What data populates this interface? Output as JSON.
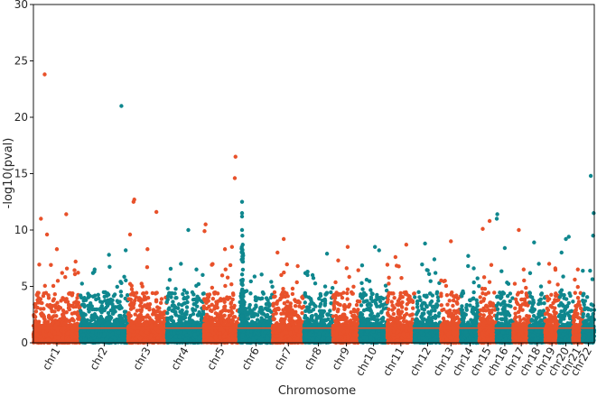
{
  "chart_data": {
    "type": "scatter",
    "subtype": "manhattan",
    "title": "",
    "xlabel": "Chromosome",
    "ylabel": "-log10(pval)",
    "ylim": [
      0,
      30
    ],
    "yticks": [
      0,
      5,
      10,
      15,
      20,
      25,
      30
    ],
    "grid": false,
    "threshold": 1.3,
    "colors": {
      "odd": "#e8512a",
      "even": "#0f878e",
      "threshold": "#e8512a"
    },
    "chromosomes": [
      {
        "label": "chr1",
        "start": 0.0,
        "end": 0.104,
        "peaks": [
          {
            "x": 0.24,
            "y": 23.8
          },
          {
            "x": 0.16,
            "y": 11.0
          },
          {
            "x": 0.7,
            "y": 11.4
          },
          {
            "x": 0.29,
            "y": 9.6
          },
          {
            "x": 0.5,
            "y": 8.3
          },
          {
            "x": 0.9,
            "y": 7.2
          }
        ]
      },
      {
        "label": "chr2",
        "start": 0.104,
        "end": 0.21,
        "peaks": [
          {
            "x": 0.86,
            "y": 21.0
          },
          {
            "x": 0.6,
            "y": 7.8
          },
          {
            "x": 0.95,
            "y": 8.2
          },
          {
            "x": 0.3,
            "y": 6.5
          }
        ]
      },
      {
        "label": "chr3",
        "start": 0.21,
        "end": 0.296,
        "peaks": [
          {
            "x": 0.16,
            "y": 12.7
          },
          {
            "x": 0.14,
            "y": 12.5
          },
          {
            "x": 0.73,
            "y": 11.6
          },
          {
            "x": 0.5,
            "y": 8.3
          },
          {
            "x": 0.05,
            "y": 9.6
          }
        ]
      },
      {
        "label": "chr4",
        "start": 0.296,
        "end": 0.378,
        "peaks": [
          {
            "x": 0.58,
            "y": 10.0
          },
          {
            "x": 0.38,
            "y": 7.0
          },
          {
            "x": 0.8,
            "y": 6.5
          }
        ]
      },
      {
        "label": "chr5",
        "start": 0.378,
        "end": 0.456,
        "peaks": [
          {
            "x": 0.9,
            "y": 16.5
          },
          {
            "x": 0.88,
            "y": 14.6
          },
          {
            "x": 0.05,
            "y": 10.5
          },
          {
            "x": 0.02,
            "y": 9.9
          },
          {
            "x": 0.8,
            "y": 8.5
          },
          {
            "x": 0.6,
            "y": 8.3
          }
        ]
      },
      {
        "label": "chr6",
        "start": 0.456,
        "end": 0.531,
        "peaks": [
          {
            "x": 0.09,
            "y": 12.5
          },
          {
            "x": 0.09,
            "y": 11.5
          },
          {
            "x": 0.09,
            "y": 11.2
          },
          {
            "x": 0.09,
            "y": 10.0
          },
          {
            "x": 0.1,
            "y": 9.5
          },
          {
            "x": 0.11,
            "y": 8.7
          }
        ],
        "cluster": {
          "x": 0.1,
          "width": 0.06,
          "max": 8.5
        }
      },
      {
        "label": "chr7",
        "start": 0.531,
        "end": 0.6,
        "peaks": [
          {
            "x": 0.35,
            "y": 9.2
          },
          {
            "x": 0.15,
            "y": 8.0
          },
          {
            "x": 0.8,
            "y": 6.8
          }
        ]
      },
      {
        "label": "chr8",
        "start": 0.6,
        "end": 0.664,
        "peaks": [
          {
            "x": 0.8,
            "y": 7.9
          },
          {
            "x": 0.3,
            "y": 6.0
          }
        ]
      },
      {
        "label": "chr9",
        "start": 0.664,
        "end": 0.724,
        "peaks": [
          {
            "x": 0.55,
            "y": 8.5
          },
          {
            "x": 0.2,
            "y": 7.3
          }
        ]
      },
      {
        "label": "chr10",
        "start": 0.724,
        "end": 0.785,
        "peaks": [
          {
            "x": 0.55,
            "y": 8.5
          },
          {
            "x": 0.7,
            "y": 8.2
          }
        ]
      },
      {
        "label": "chr11",
        "start": 0.785,
        "end": 0.845,
        "peaks": [
          {
            "x": 0.7,
            "y": 8.7
          },
          {
            "x": 0.3,
            "y": 7.6
          }
        ]
      },
      {
        "label": "chr12",
        "start": 0.845,
        "end": 0.904,
        "peaks": [
          {
            "x": 0.4,
            "y": 8.8
          },
          {
            "x": 0.75,
            "y": 7.4
          }
        ]
      },
      {
        "label": "chr13",
        "start": 0.904,
        "end": 0.948,
        "peaks": [
          {
            "x": 0.5,
            "y": 9.0
          },
          {
            "x": 0.2,
            "y": 5.5
          }
        ]
      },
      {
        "label": "chr14",
        "start": 0.948,
        "end": 0.989,
        "peaks": [
          {
            "x": 0.4,
            "y": 7.7
          },
          {
            "x": 0.7,
            "y": 6.6
          }
        ]
      },
      {
        "label": "chr15",
        "start": 0.989,
        "end": 1.027,
        "peaks": [
          {
            "x": 0.2,
            "y": 10.1
          },
          {
            "x": 0.6,
            "y": 10.8
          },
          {
            "x": 0.7,
            "y": 6.9
          }
        ]
      },
      {
        "label": "chr16",
        "start": 1.027,
        "end": 1.064,
        "peaks": [
          {
            "x": 0.05,
            "y": 11.4
          },
          {
            "x": 0.02,
            "y": 11.0
          },
          {
            "x": 0.5,
            "y": 8.4
          }
        ]
      },
      {
        "label": "chr17",
        "start": 1.064,
        "end": 1.1,
        "peaks": [
          {
            "x": 0.35,
            "y": 10.0
          },
          {
            "x": 0.65,
            "y": 6.5
          }
        ]
      },
      {
        "label": "chr18",
        "start": 1.1,
        "end": 1.135,
        "peaks": [
          {
            "x": 0.3,
            "y": 8.9
          },
          {
            "x": 0.6,
            "y": 7.0
          }
        ]
      },
      {
        "label": "chr19",
        "start": 1.135,
        "end": 1.165,
        "peaks": [
          {
            "x": 0.3,
            "y": 7.0
          },
          {
            "x": 0.75,
            "y": 6.6
          }
        ]
      },
      {
        "label": "chr20",
        "start": 1.165,
        "end": 1.197,
        "peaks": [
          {
            "x": 0.7,
            "y": 9.4
          },
          {
            "x": 0.5,
            "y": 9.2
          },
          {
            "x": 0.2,
            "y": 8.0
          }
        ]
      },
      {
        "label": "chr21",
        "start": 1.197,
        "end": 1.218,
        "peaks": [
          {
            "x": 0.5,
            "y": 6.5
          }
        ]
      },
      {
        "label": "chr22",
        "start": 1.218,
        "end": 1.244,
        "peaks": [
          {
            "x": 0.7,
            "y": 14.8
          },
          {
            "x": 0.9,
            "y": 9.5
          },
          {
            "x": 0.95,
            "y": 11.5
          }
        ]
      }
    ]
  }
}
